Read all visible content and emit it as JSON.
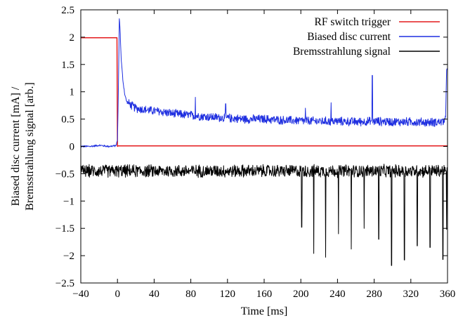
{
  "chart_data": {
    "type": "line",
    "title": "",
    "xlabel": "Time [ms]",
    "ylabel_lines": [
      "Biased disc current [mA] /",
      "Bremsstrahlung signal [arb.]"
    ],
    "xlim": [
      -40,
      360
    ],
    "ylim": [
      -2.5,
      2.5
    ],
    "x_ticks": [
      -40,
      0,
      40,
      80,
      120,
      160,
      200,
      240,
      280,
      320,
      360
    ],
    "x_tick_labels": [
      "−40",
      "0",
      "40",
      "80",
      "120",
      "160",
      "200",
      "240",
      "280",
      "320",
      "360"
    ],
    "y_ticks": [
      2.5,
      2,
      1.5,
      1,
      0.5,
      0,
      -0.5,
      -1,
      -1.5,
      -2,
      -2.5
    ],
    "y_tick_labels": [
      "2.5",
      "2",
      "1.5",
      "1",
      "0.5",
      "0",
      "−0.5",
      "−1",
      "−1.5",
      "−2",
      "−2.5"
    ],
    "grid": false,
    "legend_position": "top-right",
    "series": [
      {
        "name": "RF switch trigger",
        "color": "#e41a1c",
        "x": [
          -40,
          -0.5,
          0,
          0.6,
          360
        ],
        "y": [
          1.99,
          1.99,
          0.0,
          0.01,
          0.01
        ]
      },
      {
        "name": "Biased disc current",
        "color": "#1f2fe0",
        "x": [
          -40,
          -30,
          -20,
          -10,
          -2,
          0,
          1,
          2,
          3,
          4,
          6,
          8,
          10,
          15,
          20,
          30,
          40,
          50,
          60,
          80,
          100,
          120,
          140,
          160,
          180,
          200,
          220,
          240,
          260,
          280,
          300,
          320,
          340,
          355,
          358,
          359,
          360
        ],
        "y": [
          0.0,
          0.0,
          0.02,
          0.0,
          0.01,
          0.1,
          1.0,
          2.35,
          2.1,
          1.6,
          1.2,
          0.95,
          0.82,
          0.75,
          0.7,
          0.67,
          0.65,
          0.63,
          0.6,
          0.57,
          0.54,
          0.52,
          0.5,
          0.5,
          0.48,
          0.47,
          0.46,
          0.46,
          0.45,
          0.46,
          0.45,
          0.45,
          0.44,
          0.45,
          0.5,
          1.4,
          0.45
        ],
        "noise_amplitude": 0.09,
        "spikes": [
          {
            "x": 85,
            "y": 0.9
          },
          {
            "x": 118,
            "y": 0.78
          },
          {
            "x": 205,
            "y": 0.7
          },
          {
            "x": 233,
            "y": 0.8
          },
          {
            "x": 278,
            "y": 1.3
          },
          {
            "x": 359.5,
            "y": 1.42
          }
        ]
      },
      {
        "name": "Bremsstrahlung signal",
        "color": "#000000",
        "baseline": -0.45,
        "noise_amplitude": 0.13,
        "x": [
          -40,
          360
        ],
        "y": [
          -0.45,
          -0.45
        ],
        "spikes": [
          {
            "x": 201,
            "y": -1.48
          },
          {
            "x": 214,
            "y": -1.96
          },
          {
            "x": 227,
            "y": -2.03
          },
          {
            "x": 241,
            "y": -1.6
          },
          {
            "x": 255,
            "y": -1.88
          },
          {
            "x": 269,
            "y": -1.5
          },
          {
            "x": 285,
            "y": -1.7
          },
          {
            "x": 299,
            "y": -2.18
          },
          {
            "x": 313,
            "y": -2.08
          },
          {
            "x": 327,
            "y": -1.82
          },
          {
            "x": 341,
            "y": -1.85
          },
          {
            "x": 355,
            "y": -2.07
          },
          {
            "x": 359,
            "y": -1.52
          }
        ]
      }
    ]
  }
}
